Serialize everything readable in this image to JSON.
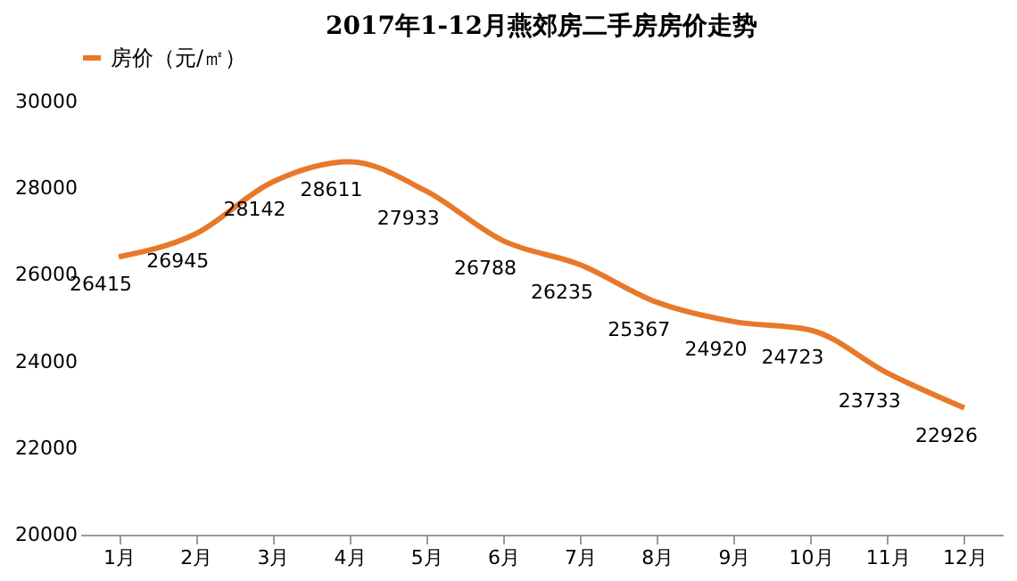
{
  "chart_data": {
    "type": "line",
    "title": "2017年1-12月燕郊房二手房房价走势",
    "categories": [
      "1月",
      "2月",
      "3月",
      "4月",
      "5月",
      "6月",
      "7月",
      "8月",
      "9月",
      "10月",
      "11月",
      "12月"
    ],
    "series": [
      {
        "name": "房价（元/㎡）",
        "color": "#e8782a",
        "values": [
          26415,
          26945,
          28142,
          28611,
          27933,
          26788,
          26235,
          25367,
          24920,
          24723,
          23733,
          22926
        ]
      }
    ],
    "ylim": [
      20000,
      30000
    ],
    "yticks": [
      20000,
      22000,
      24000,
      26000,
      28000,
      30000
    ],
    "grid": false,
    "legend": "top",
    "marker": "none",
    "line_style": "solid",
    "data_labels": true
  }
}
